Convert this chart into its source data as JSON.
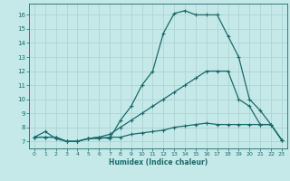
{
  "title": "",
  "xlabel": "Humidex (Indice chaleur)",
  "ylabel": "",
  "background_color": "#c5e8e8",
  "grid_color": "#aed4d4",
  "line_color": "#1a6b6b",
  "xlim": [
    -0.5,
    23.5
  ],
  "ylim": [
    6.5,
    16.8
  ],
  "xticks": [
    0,
    1,
    2,
    3,
    4,
    5,
    6,
    7,
    8,
    9,
    10,
    11,
    12,
    13,
    14,
    15,
    16,
    17,
    18,
    19,
    20,
    21,
    22,
    23
  ],
  "yticks": [
    7,
    8,
    9,
    10,
    11,
    12,
    13,
    14,
    15,
    16
  ],
  "curve1_x": [
    0,
    1,
    2,
    3,
    4,
    5,
    6,
    7,
    8,
    9,
    10,
    11,
    12,
    13,
    14,
    15,
    16,
    17,
    18,
    19,
    20,
    21,
    22,
    23
  ],
  "curve1_y": [
    7.3,
    7.7,
    7.2,
    7.0,
    7.0,
    7.2,
    7.3,
    7.2,
    8.5,
    9.5,
    11.0,
    12.0,
    14.7,
    16.1,
    16.3,
    16.0,
    16.0,
    16.0,
    14.5,
    13.0,
    10.0,
    9.2,
    8.2,
    7.1
  ],
  "curve2_x": [
    0,
    1,
    2,
    3,
    4,
    5,
    6,
    7,
    8,
    9,
    10,
    11,
    12,
    13,
    14,
    15,
    16,
    17,
    18,
    19,
    20,
    21,
    22,
    23
  ],
  "curve2_y": [
    7.3,
    7.3,
    7.3,
    7.0,
    7.0,
    7.2,
    7.3,
    7.5,
    8.0,
    8.5,
    9.0,
    9.5,
    10.0,
    10.5,
    11.0,
    11.5,
    12.0,
    12.0,
    12.0,
    10.0,
    9.5,
    8.2,
    8.2,
    7.1
  ],
  "curve3_x": [
    0,
    1,
    2,
    3,
    4,
    5,
    6,
    7,
    8,
    9,
    10,
    11,
    12,
    13,
    14,
    15,
    16,
    17,
    18,
    19,
    20,
    21,
    22,
    23
  ],
  "curve3_y": [
    7.3,
    7.3,
    7.3,
    7.0,
    7.0,
    7.2,
    7.2,
    7.3,
    7.3,
    7.5,
    7.6,
    7.7,
    7.8,
    8.0,
    8.1,
    8.2,
    8.3,
    8.2,
    8.2,
    8.2,
    8.2,
    8.2,
    8.2,
    7.1
  ]
}
